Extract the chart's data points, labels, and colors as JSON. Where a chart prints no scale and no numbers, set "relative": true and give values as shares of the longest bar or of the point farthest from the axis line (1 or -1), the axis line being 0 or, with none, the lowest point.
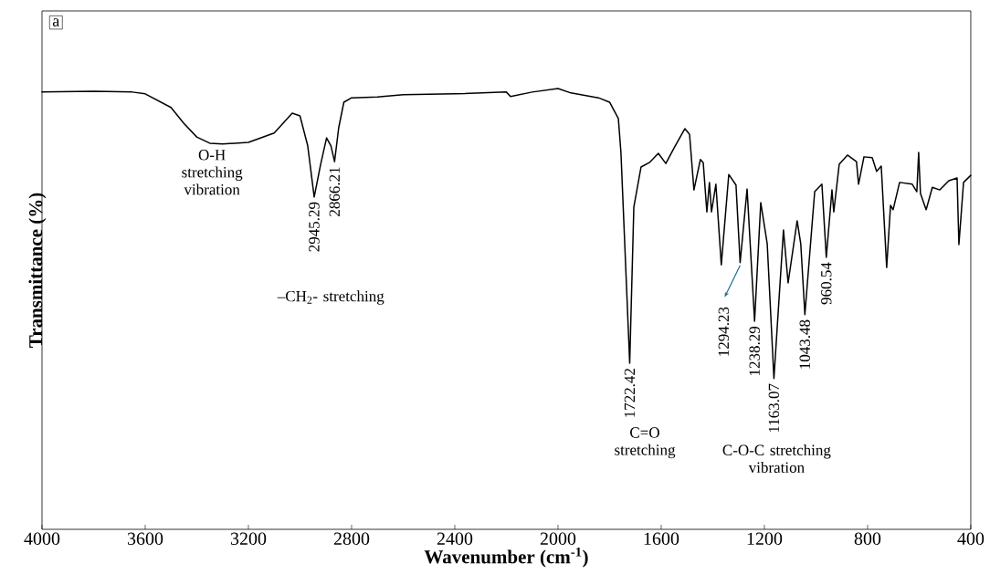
{
  "chart_data": {
    "type": "line",
    "relative": true,
    "xlabel": "Wavenumber (cm$^{-1}$)",
    "ylabel": "Transmittance (%)",
    "xlim": [
      4000,
      400
    ],
    "xticks": [
      4000,
      3600,
      3200,
      2800,
      2400,
      2000,
      1600,
      1200,
      800,
      400
    ],
    "grid": false,
    "marker": "none",
    "color": "#000000",
    "x": [
      4000,
      3800,
      3650,
      3600,
      3500,
      3450,
      3400,
      3350,
      3300,
      3200,
      3100,
      3030,
      3000,
      2970,
      2945,
      2920,
      2897,
      2880,
      2866,
      2850,
      2830,
      2800,
      2700,
      2600,
      2400,
      2200,
      2184,
      2100,
      2000,
      1950,
      1843,
      1800,
      1766,
      1756,
      1722,
      1706,
      1678,
      1646,
      1611,
      1582,
      1550,
      1508,
      1490,
      1473,
      1448,
      1437,
      1423,
      1413,
      1405,
      1388,
      1367,
      1338,
      1310,
      1294,
      1267,
      1238,
      1214,
      1189,
      1163,
      1126,
      1108,
      1073,
      1059,
      1043,
      1005,
      977,
      960,
      938,
      931,
      910,
      878,
      843,
      835,
      814,
      782,
      765,
      747,
      726,
      711,
      701,
      676,
      627,
      609,
      602,
      595,
      573,
      549,
      520,
      485,
      453,
      446,
      428,
      400
    ],
    "values": [
      0.992,
      0.994,
      0.992,
      0.988,
      0.957,
      0.921,
      0.89,
      0.876,
      0.874,
      0.878,
      0.899,
      0.944,
      0.938,
      0.87,
      0.754,
      0.828,
      0.888,
      0.87,
      0.834,
      0.911,
      0.969,
      0.979,
      0.981,
      0.986,
      0.988,
      0.992,
      0.982,
      0.992,
      1.0,
      0.99,
      0.979,
      0.969,
      0.932,
      0.855,
      0.377,
      0.731,
      0.822,
      0.832,
      0.853,
      0.83,
      0.865,
      0.909,
      0.896,
      0.77,
      0.839,
      0.832,
      0.72,
      0.787,
      0.72,
      0.783,
      0.6,
      0.805,
      0.781,
      0.605,
      0.772,
      0.472,
      0.741,
      0.648,
      0.342,
      0.679,
      0.559,
      0.7,
      0.648,
      0.487,
      0.766,
      0.783,
      0.617,
      0.77,
      0.72,
      0.828,
      0.849,
      0.834,
      0.783,
      0.845,
      0.843,
      0.812,
      0.824,
      0.594,
      0.735,
      0.725,
      0.787,
      0.783,
      0.766,
      0.855,
      0.762,
      0.725,
      0.776,
      0.77,
      0.791,
      0.797,
      0.646,
      0.787,
      0.803
    ],
    "annotations": [
      "a",
      {
        "text": "O-H stretching vibration",
        "x": 3341,
        "y": 0.874
      },
      {
        "text": "2945.29",
        "x": 2945,
        "y": 0.754
      },
      {
        "text": "2866.21",
        "x": 2866,
        "y": 0.834
      },
      "–CH$_{2}$- stretching",
      {
        "text": "1722.42",
        "x": 1722,
        "y": 0.377
      },
      "C=O stretching",
      {
        "text": "1294.23",
        "x": 1294,
        "y": 0.605
      },
      {
        "text": "1238.29",
        "x": 1238,
        "y": 0.472
      },
      {
        "text": "1163.07",
        "x": 1163,
        "y": 0.342
      },
      "C-O-C stretching vibration",
      {
        "text": "1043.48",
        "x": 1043,
        "y": 0.487
      },
      {
        "text": "960.54",
        "x": 960,
        "y": 0.617
      }
    ]
  }
}
